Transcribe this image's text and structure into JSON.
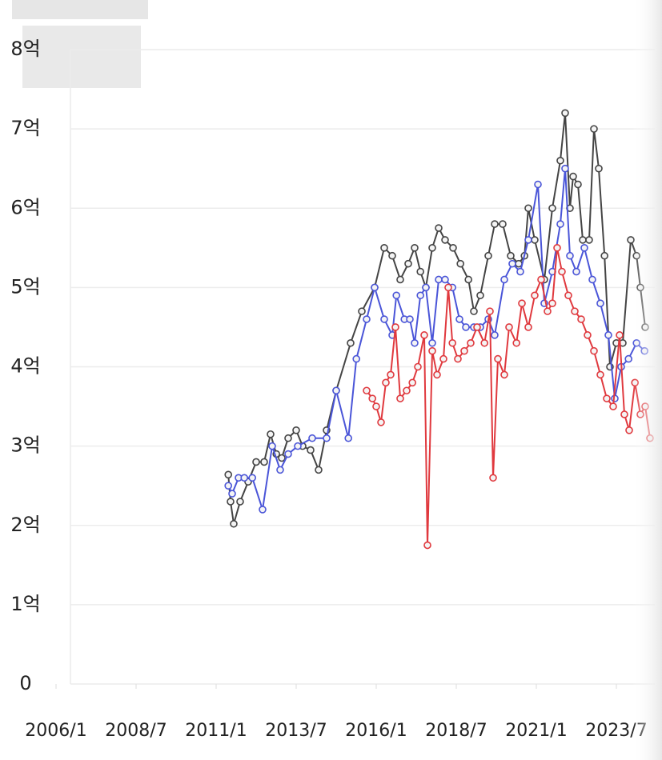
{
  "chart_data": {
    "type": "line",
    "ylim": [
      0,
      8
    ],
    "yticks": [
      0,
      {
        "value": 1,
        "label": "1억"
      },
      {
        "value": 2,
        "label": "2억"
      },
      {
        "value": 3,
        "label": "3억"
      },
      {
        "value": 4,
        "label": "4억"
      },
      {
        "value": 5,
        "label": "5억"
      },
      {
        "value": 6,
        "label": "6억"
      },
      {
        "value": 7,
        "label": "7억"
      },
      {
        "value": 8,
        "label": "8억"
      }
    ],
    "xlim": [
      2005.6,
      2024.7
    ],
    "xticks": [
      {
        "value": 2006,
        "label": "2006/1"
      },
      {
        "value": 2008.5,
        "label": "2008/7"
      },
      {
        "value": 2011,
        "label": "2011/1"
      },
      {
        "value": 2013.5,
        "label": "2013/7"
      },
      {
        "value": 2016,
        "label": "2016/1"
      },
      {
        "value": 2018.5,
        "label": "2018/7"
      },
      {
        "value": 2021,
        "label": "2021/1"
      },
      {
        "value": 2023.5,
        "label": "2023/7"
      }
    ],
    "grid": true,
    "series": [
      {
        "color": "#444444",
        "x": [
          2011.38,
          2011.45,
          2011.55,
          2011.75,
          2012.0,
          2012.25,
          2012.5,
          2012.7,
          2012.88,
          2013.05,
          2013.25,
          2013.5,
          2013.7,
          2013.95,
          2014.2,
          2014.45,
          2014.75,
          2015.2,
          2015.55,
          2015.95,
          2016.25,
          2016.5,
          2016.75,
          2017.0,
          2017.2,
          2017.38,
          2017.55,
          2017.75,
          2017.95,
          2018.15,
          2018.4,
          2018.63,
          2018.88,
          2019.05,
          2019.25,
          2019.5,
          2019.7,
          2019.95,
          2020.2,
          2020.45,
          2020.63,
          2020.75,
          2020.95,
          2021.25,
          2021.5,
          2021.75,
          2021.9,
          2022.05,
          2022.15,
          2022.3,
          2022.45,
          2022.65,
          2022.8,
          2022.95,
          2023.13,
          2023.3,
          2023.5,
          2023.7,
          2023.95,
          2024.13,
          2024.25,
          2024.4
        ],
        "values": [
          2.64,
          2.3,
          2.02,
          2.3,
          2.55,
          2.8,
          2.8,
          3.15,
          2.9,
          2.85,
          3.1,
          3.2,
          3.0,
          2.95,
          2.7,
          3.2,
          3.7,
          4.3,
          4.7,
          5.0,
          5.5,
          5.4,
          5.1,
          5.3,
          5.5,
          5.2,
          5.0,
          5.5,
          5.75,
          5.6,
          5.5,
          5.3,
          5.1,
          4.7,
          4.9,
          5.4,
          5.8,
          5.8,
          5.4,
          5.3,
          5.4,
          6.0,
          5.6,
          5.1,
          6.0,
          6.6,
          7.2,
          6.0,
          6.4,
          6.3,
          5.6,
          5.6,
          7.0,
          6.5,
          5.4,
          4.0,
          4.3,
          4.3,
          5.6,
          5.4,
          5.0,
          4.5
        ]
      },
      {
        "color": "#4a55d8",
        "x": [
          2011.38,
          2011.5,
          2011.7,
          2011.88,
          2012.13,
          2012.45,
          2012.75,
          2013.0,
          2013.25,
          2013.55,
          2014.0,
          2014.45,
          2014.75,
          2015.13,
          2015.38,
          2015.7,
          2015.95,
          2016.25,
          2016.5,
          2016.63,
          2016.88,
          2017.05,
          2017.2,
          2017.38,
          2017.55,
          2017.75,
          2017.95,
          2018.15,
          2018.38,
          2018.6,
          2018.8,
          2019.05,
          2019.25,
          2019.5,
          2019.7,
          2020.0,
          2020.25,
          2020.5,
          2020.75,
          2021.05,
          2021.25,
          2021.5,
          2021.75,
          2021.9,
          2022.05,
          2022.25,
          2022.5,
          2022.75,
          2023.0,
          2023.25,
          2023.45,
          2023.65,
          2023.88,
          2024.13,
          2024.38
        ],
        "values": [
          2.5,
          2.4,
          2.6,
          2.6,
          2.6,
          2.2,
          3.0,
          2.7,
          2.9,
          3.0,
          3.1,
          3.1,
          3.7,
          3.1,
          4.1,
          4.6,
          5.0,
          4.6,
          4.4,
          4.9,
          4.6,
          4.6,
          4.3,
          4.9,
          5.0,
          4.3,
          5.1,
          5.1,
          5.0,
          4.6,
          4.5,
          4.5,
          4.5,
          4.6,
          4.4,
          5.1,
          5.3,
          5.2,
          5.6,
          6.3,
          4.8,
          5.2,
          5.8,
          6.5,
          5.4,
          5.2,
          5.5,
          5.1,
          4.8,
          4.4,
          3.6,
          4.0,
          4.1,
          4.3,
          4.2
        ]
      },
      {
        "color": "#e0393e",
        "x": [
          2015.7,
          2015.88,
          2016.0,
          2016.15,
          2016.3,
          2016.45,
          2016.6,
          2016.75,
          2016.95,
          2017.13,
          2017.3,
          2017.5,
          2017.6,
          2017.75,
          2017.9,
          2018.1,
          2018.25,
          2018.38,
          2018.55,
          2018.75,
          2018.95,
          2019.15,
          2019.38,
          2019.55,
          2019.65,
          2019.8,
          2020.0,
          2020.15,
          2020.38,
          2020.55,
          2020.75,
          2020.95,
          2021.15,
          2021.35,
          2021.5,
          2021.65,
          2021.8,
          2022.0,
          2022.2,
          2022.4,
          2022.6,
          2022.8,
          2023.0,
          2023.2,
          2023.4,
          2023.6,
          2023.75,
          2023.9,
          2024.08,
          2024.25,
          2024.4,
          2024.55
        ],
        "values": [
          3.7,
          3.6,
          3.5,
          3.3,
          3.8,
          3.9,
          4.5,
          3.6,
          3.7,
          3.8,
          4.0,
          4.4,
          1.75,
          4.2,
          3.9,
          4.1,
          5.0,
          4.3,
          4.1,
          4.2,
          4.3,
          4.5,
          4.3,
          4.7,
          2.6,
          4.1,
          3.9,
          4.5,
          4.3,
          4.8,
          4.5,
          4.9,
          5.1,
          4.7,
          4.8,
          5.5,
          5.2,
          4.9,
          4.7,
          4.6,
          4.4,
          4.2,
          3.9,
          3.6,
          3.5,
          4.4,
          3.4,
          3.2,
          3.8,
          3.4,
          3.5,
          3.1
        ]
      }
    ]
  }
}
